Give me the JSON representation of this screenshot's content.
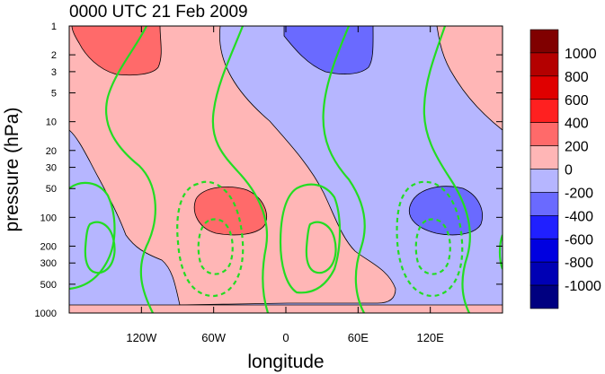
{
  "chart_data": {
    "type": "heatmap",
    "title": "0000 UTC 21 Feb 2009",
    "xlabel": "longitude",
    "ylabel": "pressure (hPa)",
    "x_ticks": [
      {
        "value": -120,
        "label": "120W"
      },
      {
        "value": -60,
        "label": "60W"
      },
      {
        "value": 0,
        "label": "0"
      },
      {
        "value": 60,
        "label": "60E"
      },
      {
        "value": 120,
        "label": "120E"
      }
    ],
    "xlim": [
      -180,
      180
    ],
    "y_scale": "log",
    "ylim": [
      1000,
      1
    ],
    "y_ticks": [
      1,
      2,
      3,
      5,
      10,
      20,
      30,
      50,
      100,
      200,
      300,
      500,
      1000
    ],
    "colorbar": {
      "labels": [
        "1000",
        "800",
        "600",
        "400",
        "200",
        "0",
        "-200",
        "-400",
        "-600",
        "-800",
        "-1000"
      ],
      "colors": [
        "#800000",
        "#b40000",
        "#e00000",
        "#ff2020",
        "#ff6a6a",
        "#ffb6b6",
        "#b6b6ff",
        "#6a6aff",
        "#2020ff",
        "#0000e0",
        "#0000b4",
        "#000080"
      ]
    },
    "filled_contours": [
      {
        "sign": "positive",
        "level": 0,
        "color": "#ffb6b6"
      },
      {
        "sign": "negative",
        "level": -200,
        "color": "#b6b6ff"
      },
      {
        "sign": "positive",
        "level": 200,
        "color": "#ff6a6a"
      },
      {
        "sign": "negative",
        "level": -400,
        "color": "#6a6aff"
      }
    ],
    "line_contours": {
      "color": "#22dd22",
      "positive_style": "solid",
      "negative_style": "dashed"
    }
  }
}
